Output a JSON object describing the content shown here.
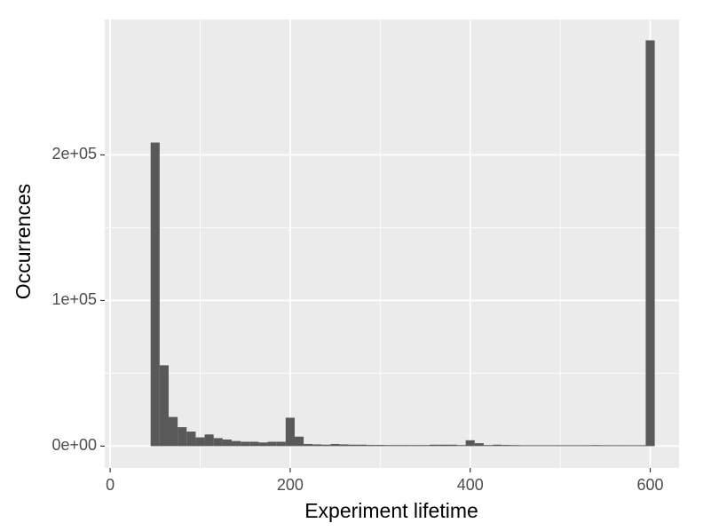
{
  "chart_data": {
    "type": "histogram",
    "x_label": "Experiment lifetime",
    "y_label": "Occurrences",
    "bins": [
      45,
      55,
      65,
      75,
      85,
      95,
      105,
      115,
      125,
      135,
      145,
      155,
      165,
      175,
      185,
      195,
      205,
      215,
      225,
      235,
      245,
      255,
      265,
      275,
      285,
      295,
      305,
      315,
      325,
      335,
      345,
      355,
      365,
      375,
      385,
      395,
      405,
      415,
      425,
      435,
      445,
      455,
      465,
      475,
      485,
      495,
      505,
      515,
      525,
      535,
      545,
      555,
      565,
      575,
      585,
      595,
      605
    ],
    "values": [
      208500,
      55500,
      20000,
      13000,
      10000,
      6000,
      8000,
      5500,
      4500,
      3500,
      3000,
      3000,
      2500,
      3000,
      3000,
      19500,
      6500,
      1500,
      1200,
      1000,
      1500,
      1200,
      1000,
      1000,
      800,
      800,
      700,
      700,
      700,
      700,
      700,
      1000,
      1000,
      1000,
      700,
      4000,
      2000,
      700,
      1000,
      800,
      700,
      600,
      600,
      600,
      600,
      600,
      600,
      600,
      600,
      700,
      600,
      600,
      600,
      600,
      600,
      278700
    ],
    "color": "#595959",
    "xlim": [
      -6,
      632
    ],
    "xticks": [
      0,
      200,
      400,
      600
    ],
    "ylim": [
      -15000,
      293000
    ],
    "yticks": [
      {
        "value": 0,
        "label": "0e+00"
      },
      {
        "value": 100000,
        "label": "1e+05"
      },
      {
        "value": 200000,
        "label": "2e+05"
      }
    ],
    "grid": true
  }
}
